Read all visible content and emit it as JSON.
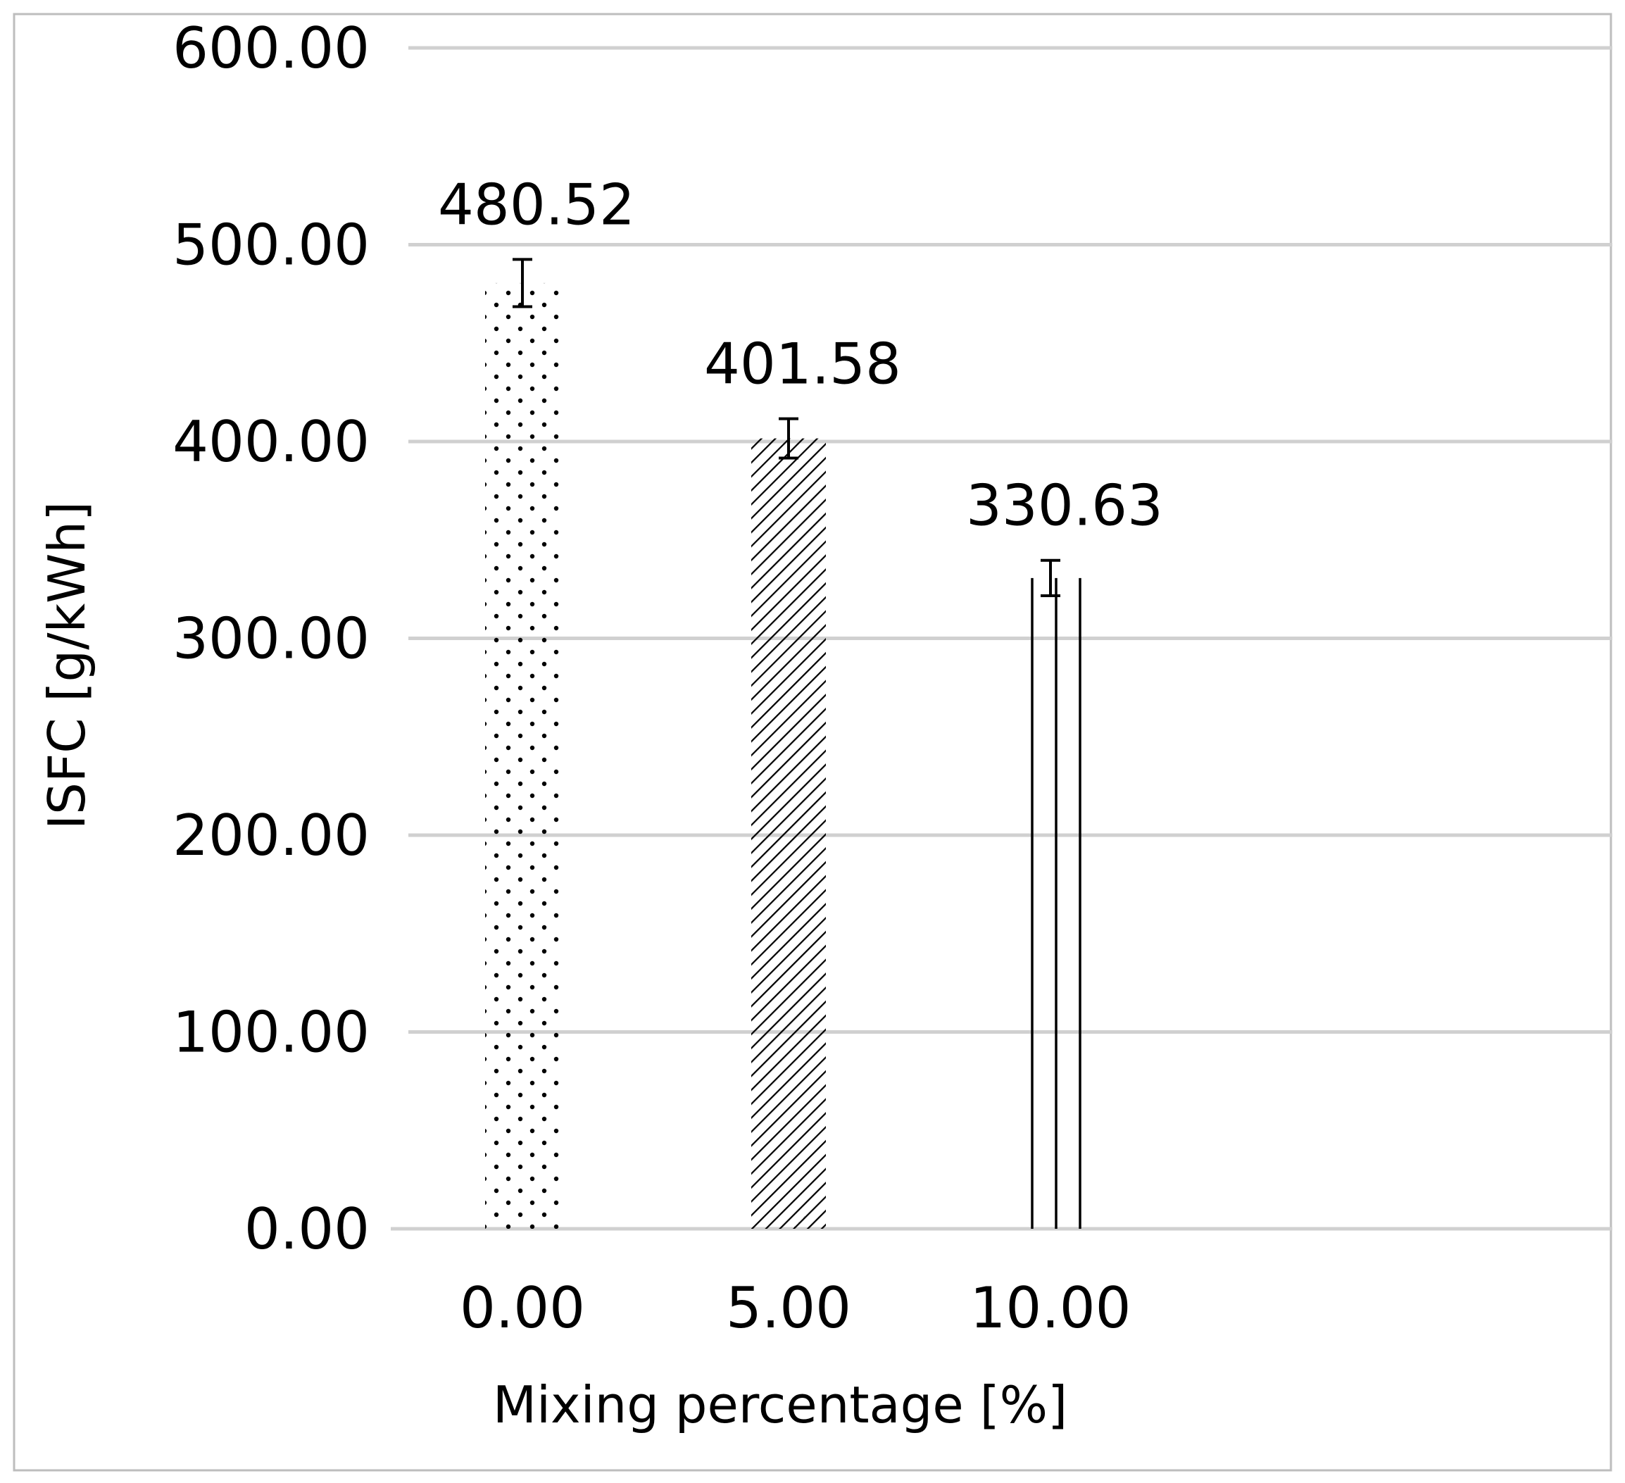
{
  "chart_data": {
    "type": "bar",
    "title": "",
    "xlabel": "Mixing percentage [%]",
    "ylabel": "ISFC [g/kWh]",
    "categories": [
      "0.00",
      "5.00",
      "10.00"
    ],
    "values": [
      480.52,
      401.58,
      330.63
    ],
    "data_labels": [
      "480.52",
      "401.58",
      "330.63"
    ],
    "error_bars": [
      12,
      10,
      9
    ],
    "fill_patterns": [
      "dots",
      "diagonal-hatch",
      "vertical-lines"
    ],
    "ylim": [
      0,
      600
    ],
    "yticks": [
      0,
      100,
      200,
      300,
      400,
      500,
      600
    ],
    "ytick_labels": [
      "0.00",
      "100.00",
      "200.00",
      "300.00",
      "400.00",
      "500.00",
      "600.00"
    ],
    "grid": true,
    "legend": "none",
    "colors": {
      "grid": "#d0d0d0",
      "bar_pattern": "#000000",
      "frame": "#bdbdbd"
    }
  }
}
